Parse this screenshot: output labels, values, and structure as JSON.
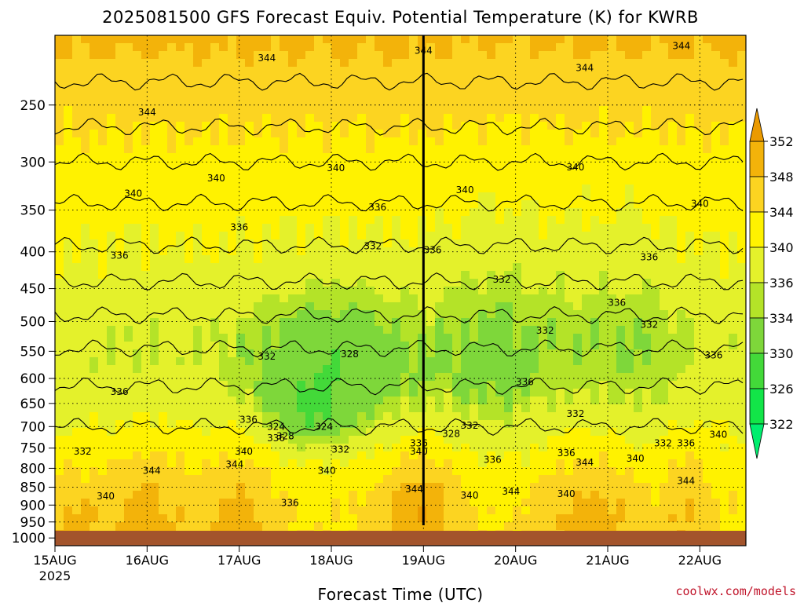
{
  "chart_data": {
    "type": "heatmap",
    "title": "2025081500 GFS Forecast Equiv. Potential Temperature (K) for KWRB",
    "xlabel": "Forecast Time (UTC)",
    "ylabel": "",
    "x_tick_labels": [
      "15AUG",
      "16AUG",
      "17AUG",
      "18AUG",
      "19AUG",
      "20AUG",
      "21AUG",
      "22AUG"
    ],
    "x_year_label": "2025",
    "xlim_days": [
      0,
      7.5
    ],
    "y_tick_labels": [
      "250",
      "300",
      "350",
      "400",
      "450",
      "500",
      "550",
      "600",
      "650",
      "700",
      "750",
      "800",
      "850",
      "900",
      "950",
      "1000"
    ],
    "y_ticks_hpa": [
      250,
      300,
      350,
      400,
      450,
      500,
      550,
      600,
      650,
      700,
      750,
      800,
      850,
      900,
      950,
      1000
    ],
    "ylim_hpa": [
      200,
      1025
    ],
    "y_scale": "log",
    "grid": true,
    "colorbar": {
      "labels": [
        "352",
        "348",
        "344",
        "340",
        "336",
        "334",
        "330",
        "326",
        "322"
      ],
      "levels": [
        322,
        326,
        330,
        334,
        336,
        340,
        344,
        348,
        352
      ],
      "colors": [
        "#00ee6e",
        "#12e548",
        "#43d939",
        "#7ed73a",
        "#b4e328",
        "#e4f12b",
        "#fff200",
        "#fcd421",
        "#f3b30a",
        "#eb9a00"
      ]
    },
    "ground_color": "#a3542c",
    "contour_labels": [
      {
        "text": "344",
        "day": 2.3,
        "p": 215
      },
      {
        "text": "344",
        "day": 4.0,
        "p": 210
      },
      {
        "text": "344",
        "day": 5.75,
        "p": 222
      },
      {
        "text": "344",
        "day": 6.8,
        "p": 207
      },
      {
        "text": "344",
        "day": 1.0,
        "p": 256
      },
      {
        "text": "340",
        "day": 1.75,
        "p": 316
      },
      {
        "text": "340",
        "day": 3.05,
        "p": 306
      },
      {
        "text": "340",
        "day": 5.65,
        "p": 305
      },
      {
        "text": "340",
        "day": 0.85,
        "p": 332
      },
      {
        "text": "340",
        "day": 4.45,
        "p": 328
      },
      {
        "text": "340",
        "day": 7.0,
        "p": 343
      },
      {
        "text": "336",
        "day": 2.0,
        "p": 370
      },
      {
        "text": "336",
        "day": 3.5,
        "p": 347
      },
      {
        "text": "336",
        "day": 0.7,
        "p": 405
      },
      {
        "text": "336",
        "day": 4.1,
        "p": 398
      },
      {
        "text": "336",
        "day": 6.45,
        "p": 407
      },
      {
        "text": "332",
        "day": 3.45,
        "p": 393
      },
      {
        "text": "332",
        "day": 4.85,
        "p": 437
      },
      {
        "text": "336",
        "day": 6.1,
        "p": 471
      },
      {
        "text": "332",
        "day": 5.32,
        "p": 515
      },
      {
        "text": "332",
        "day": 6.45,
        "p": 505
      },
      {
        "text": "332",
        "day": 2.3,
        "p": 559
      },
      {
        "text": "328",
        "day": 3.2,
        "p": 555
      },
      {
        "text": "336",
        "day": 7.15,
        "p": 557
      },
      {
        "text": "336",
        "day": 0.7,
        "p": 626
      },
      {
        "text": "336",
        "day": 5.1,
        "p": 607
      },
      {
        "text": "336",
        "day": 2.1,
        "p": 685
      },
      {
        "text": "324",
        "day": 2.4,
        "p": 700
      },
      {
        "text": "328",
        "day": 2.5,
        "p": 722
      },
      {
        "text": "324",
        "day": 2.92,
        "p": 700
      },
      {
        "text": "332",
        "day": 5.65,
        "p": 672
      },
      {
        "text": "332",
        "day": 4.5,
        "p": 698
      },
      {
        "text": "328",
        "day": 4.3,
        "p": 716
      },
      {
        "text": "336",
        "day": 2.4,
        "p": 726
      },
      {
        "text": "332",
        "day": 0.3,
        "p": 758
      },
      {
        "text": "340",
        "day": 2.05,
        "p": 758
      },
      {
        "text": "332",
        "day": 3.1,
        "p": 753
      },
      {
        "text": "336",
        "day": 3.95,
        "p": 738
      },
      {
        "text": "340",
        "day": 3.95,
        "p": 758
      },
      {
        "text": "336",
        "day": 4.75,
        "p": 778
      },
      {
        "text": "336",
        "day": 5.55,
        "p": 762
      },
      {
        "text": "332",
        "day": 6.6,
        "p": 738
      },
      {
        "text": "336",
        "day": 6.85,
        "p": 738
      },
      {
        "text": "340",
        "day": 7.2,
        "p": 718
      },
      {
        "text": "340",
        "day": 6.3,
        "p": 775
      },
      {
        "text": "344",
        "day": 1.05,
        "p": 806
      },
      {
        "text": "344",
        "day": 1.95,
        "p": 790
      },
      {
        "text": "340",
        "day": 2.95,
        "p": 806
      },
      {
        "text": "344",
        "day": 5.75,
        "p": 785
      },
      {
        "text": "344",
        "day": 6.85,
        "p": 833
      },
      {
        "text": "340",
        "day": 0.55,
        "p": 875
      },
      {
        "text": "344",
        "day": 3.9,
        "p": 855
      },
      {
        "text": "340",
        "day": 4.5,
        "p": 873
      },
      {
        "text": "344",
        "day": 4.95,
        "p": 862
      },
      {
        "text": "340",
        "day": 5.55,
        "p": 868
      },
      {
        "text": "336",
        "day": 2.55,
        "p": 894
      }
    ]
  },
  "footer": {
    "credit": "coolwx.com/models"
  }
}
